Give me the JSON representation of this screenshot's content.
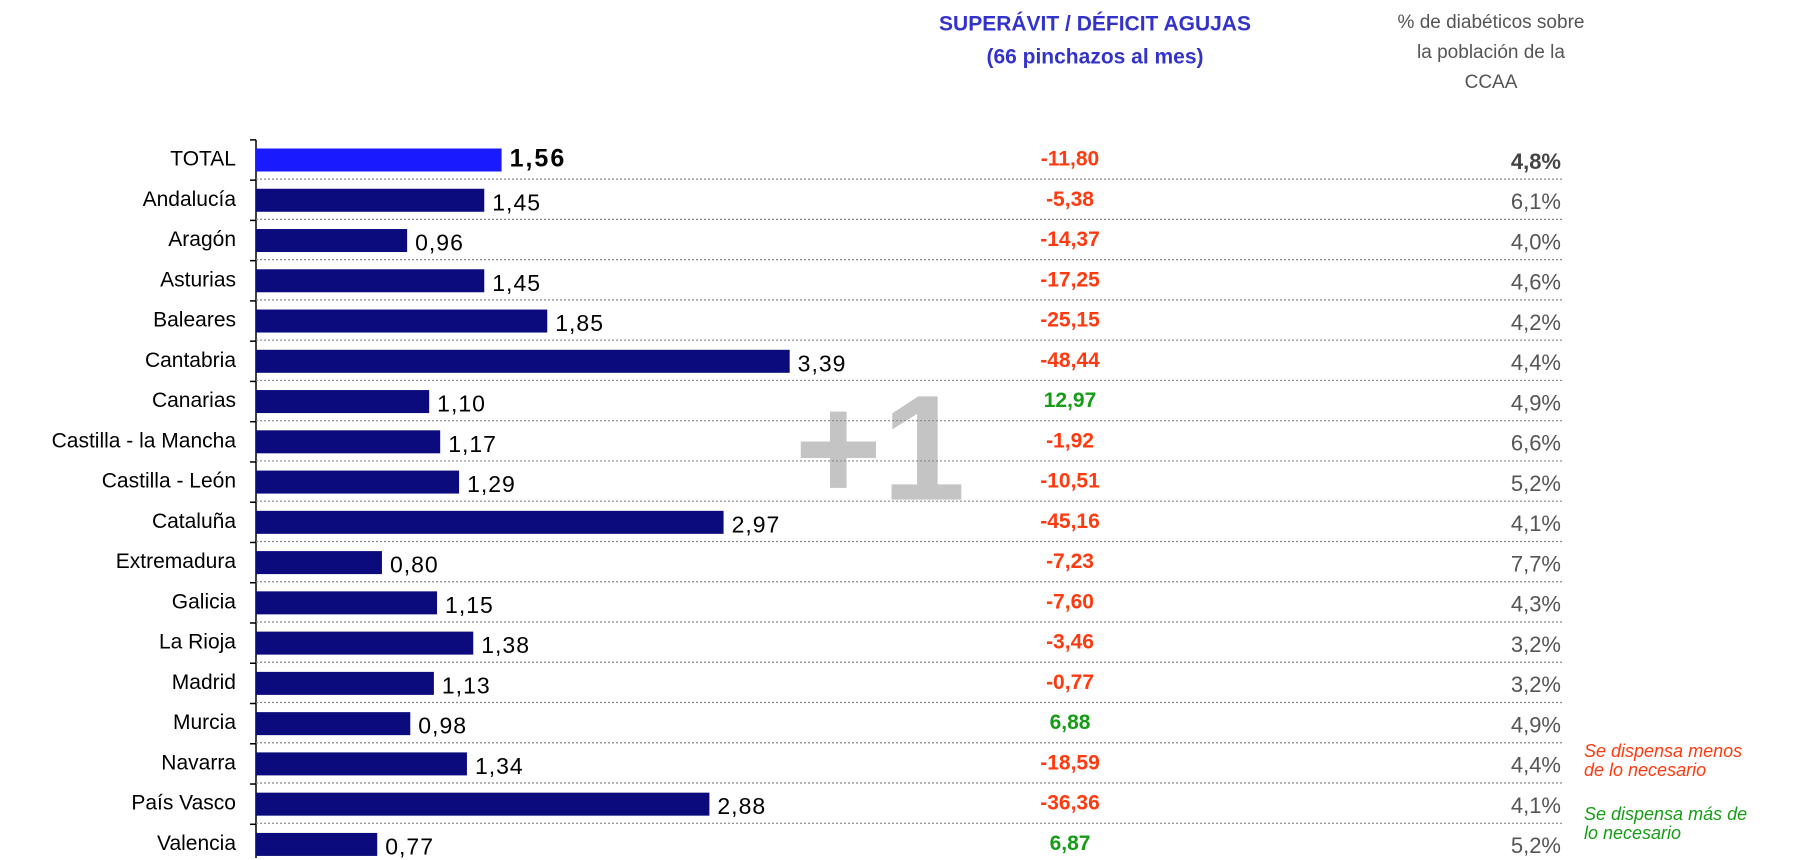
{
  "chart_data": {
    "type": "hbar",
    "categories": [
      "TOTAL",
      "Andalucía",
      "Aragón",
      "Asturias",
      "Baleares",
      "Cantabria",
      "Canarias",
      "Castilla - la Mancha",
      "Castilla - León",
      "Cataluña",
      "Extremadura",
      "Galicia",
      "La Rioja",
      "Madrid",
      "Murcia",
      "Navarra",
      "País Vasco",
      "Valencia"
    ],
    "values": [
      1.56,
      1.45,
      0.96,
      1.45,
      1.85,
      3.39,
      1.1,
      1.17,
      1.29,
      2.97,
      0.8,
      1.15,
      1.38,
      1.13,
      0.98,
      1.34,
      2.88,
      0.77
    ],
    "value_labels": [
      "1,56",
      "1,45",
      "0,96",
      "1,45",
      "1,85",
      "3,39",
      "1,10",
      "1,17",
      "1,29",
      "2,97",
      "0,80",
      "1,15",
      "1,38",
      "1,13",
      "0,98",
      "1,34",
      "2,88",
      "0,77"
    ],
    "colors": [
      "#1a1aff",
      "#0b0b7d",
      "#0b0b7d",
      "#0b0b7d",
      "#0b0b7d",
      "#0b0b7d",
      "#0b0b7d",
      "#0b0b7d",
      "#0b0b7d",
      "#0b0b7d",
      "#0b0b7d",
      "#0b0b7d",
      "#0b0b7d",
      "#0b0b7d",
      "#0b0b7d",
      "#0b0b7d",
      "#0b0b7d",
      "#0b0b7d"
    ],
    "xlim": [
      0,
      3.5
    ],
    "watermark": "+1",
    "balance": {
      "title": [
        "SUPERÁVIT / DÉFICIT AGUJAS",
        "(66 pinchazos al mes)"
      ],
      "values": [
        -11.8,
        -5.38,
        -14.37,
        -17.25,
        -25.15,
        -48.44,
        12.97,
        -1.92,
        -10.51,
        -45.16,
        -7.23,
        -7.6,
        -3.46,
        -0.77,
        6.88,
        -18.59,
        -36.36,
        6.87
      ],
      "value_labels": [
        "-11,80",
        "-5,38",
        "-14,37",
        "-17,25",
        "-25,15",
        "-48,44",
        "12,97",
        "-1,92",
        "-10,51",
        "-45,16",
        "-7,23",
        "-7,60",
        "-3,46",
        "-0,77",
        "6,88",
        "-18,59",
        "-36,36",
        "6,87"
      ],
      "negative_color": "#ff3a10",
      "positive_color": "#169c16"
    },
    "share": {
      "title": [
        "% de diabéticos sobre",
        "la población de la",
        "CCAA"
      ],
      "values": [
        4.8,
        6.1,
        4.0,
        4.6,
        4.2,
        4.4,
        4.9,
        6.6,
        5.2,
        4.1,
        7.7,
        4.3,
        3.2,
        3.2,
        4.9,
        4.4,
        4.1,
        5.2
      ],
      "value_labels": [
        "4,8%",
        "6,1%",
        "4,0%",
        "4,6%",
        "4,2%",
        "4,4%",
        "4,9%",
        "6,6%",
        "5,2%",
        "4,1%",
        "7,7%",
        "4,3%",
        "3,2%",
        "3,2%",
        "4,9%",
        "4,4%",
        "4,1%",
        "5,2%"
      ]
    },
    "notes": [
      {
        "lines": [
          "Se dispensa menos",
          "de lo necesario"
        ],
        "color": "#ff3a10"
      },
      {
        "lines": [
          "Se dispensa más de",
          "lo necesario"
        ],
        "color": "#169c16"
      }
    ]
  }
}
